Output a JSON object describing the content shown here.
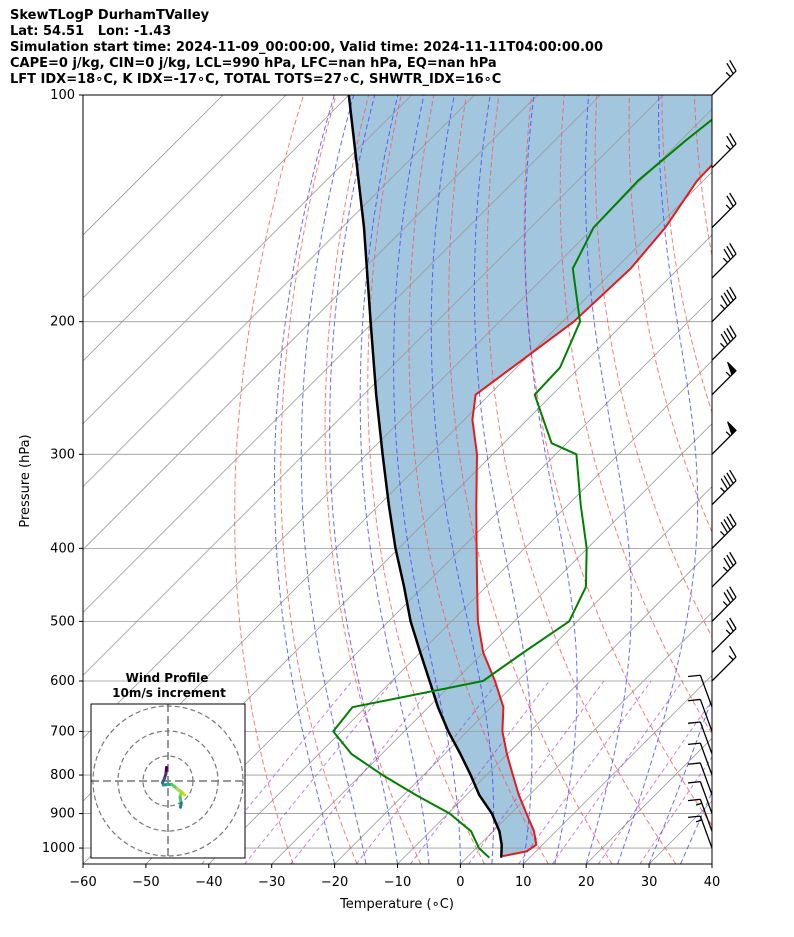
{
  "header": {
    "line1": "SkewTLogP DurhamTValley",
    "line2": "Lat: 54.51   Lon: -1.43",
    "line3": "Simulation start time: 2024-11-09_00:00:00, Valid time: 2024-11-11T04:00:00.00",
    "line4": "CAPE=0 j/kg, CIN=0 j/kg, LCL=990 hPa, LFC=nan hPa, EQ=nan hPa",
    "line5": "LFT IDX=18∘C, K IDX=-17∘C, TOTAL TOTS=27∘C, SHWTR_IDX=16∘C"
  },
  "colors": {
    "temperature": "#e41a1c",
    "dewpoint": "#008000",
    "parcel": "#000000",
    "shade": "#a3c6df",
    "dry_adiabat": "#ff5555",
    "moist_adiabat": "#4444ff",
    "mixing_ratio": "#9b30c8",
    "isotherm": "#999999"
  },
  "chart_data": [
    {
      "type": "line",
      "name": "skewt",
      "title": "SkewTLogP DurhamTValley",
      "xlabel": "Temperature (∘C)",
      "ylabel": "Pressure (hPa)",
      "xlim": [
        -60,
        40
      ],
      "ylim": [
        1050,
        100
      ],
      "yscale": "log",
      "skew": "45deg",
      "grid": true,
      "x_ticks": [
        "−60",
        "−50",
        "−40",
        "−30",
        "−20",
        "−10",
        "0",
        "10",
        "20",
        "30",
        "40"
      ],
      "y_ticks": [
        "100",
        "200",
        "300",
        "400",
        "500",
        "600",
        "700",
        "800",
        "900",
        "1000"
      ],
      "series": [
        {
          "name": "Temperature",
          "pressure": [
            1025,
            1010,
            990,
            950,
            900,
            850,
            800,
            750,
            700,
            650,
            600,
            550,
            500,
            450,
            400,
            350,
            300,
            270,
            250,
            230,
            200,
            170,
            150,
            130,
            115,
            105,
            100
          ],
          "values": [
            5.5,
            8.5,
            9.0,
            6.5,
            2.5,
            -1.7,
            -5.8,
            -10.1,
            -14.4,
            -18.1,
            -23.6,
            -30.0,
            -35.8,
            -41.4,
            -47.6,
            -54.6,
            -62.5,
            -68.7,
            -72.2,
            -70.7,
            -68.2,
            -67.6,
            -68.6,
            -71.0,
            -71.3,
            -68.4,
            -66.8
          ]
        },
        {
          "name": "Dewpoint",
          "pressure": [
            1030,
            1000,
            950,
            900,
            850,
            800,
            750,
            700,
            650,
            600,
            550,
            500,
            450,
            400,
            350,
            300,
            290,
            250,
            230,
            200,
            170,
            150,
            130,
            115,
            105,
            100
          ],
          "values": [
            3.6,
            0.4,
            -3.5,
            -9.7,
            -18.1,
            -26.5,
            -34.8,
            -41.3,
            -42.1,
            -25.5,
            -23.6,
            -21.3,
            -24.1,
            -30.1,
            -38.0,
            -46.7,
            -52.4,
            -62.8,
            -63.1,
            -67.2,
            -76.8,
            -80.0,
            -80.4,
            -79.2,
            -78.0,
            -77.2
          ]
        },
        {
          "name": "Parcel",
          "pressure": [
            1030,
            990,
            950,
            900,
            850,
            800,
            750,
            700,
            650,
            600,
            550,
            500,
            450,
            400,
            350,
            300,
            250,
            200,
            150,
            100
          ],
          "values": [
            5.5,
            3.5,
            1.0,
            -3.0,
            -8.0,
            -12.5,
            -17.5,
            -23.0,
            -28.5,
            -34.0,
            -40.0,
            -46.5,
            -53.0,
            -60.5,
            -68.5,
            -77.5,
            -88.0,
            -100.5,
            -116.5,
            -140.0
          ]
        }
      ],
      "wind_barbs": [
        {
          "pressure": 100,
          "speed_kt": 25
        },
        {
          "pressure": 125,
          "speed_kt": 25
        },
        {
          "pressure": 150,
          "speed_kt": 25
        },
        {
          "pressure": 175,
          "speed_kt": 35
        },
        {
          "pressure": 200,
          "speed_kt": 45
        },
        {
          "pressure": 225,
          "speed_kt": 45
        },
        {
          "pressure": 250,
          "speed_kt": 55
        },
        {
          "pressure": 300,
          "speed_kt": 55
        },
        {
          "pressure": 350,
          "speed_kt": 45
        },
        {
          "pressure": 400,
          "speed_kt": 45
        },
        {
          "pressure": 450,
          "speed_kt": 35
        },
        {
          "pressure": 500,
          "speed_kt": 35
        },
        {
          "pressure": 550,
          "speed_kt": 25
        },
        {
          "pressure": 600,
          "speed_kt": 15
        },
        {
          "pressure": 650,
          "speed_kt": 10
        },
        {
          "pressure": 700,
          "speed_kt": 10
        },
        {
          "pressure": 750,
          "speed_kt": 10
        },
        {
          "pressure": 800,
          "speed_kt": 10
        },
        {
          "pressure": 850,
          "speed_kt": 10
        },
        {
          "pressure": 900,
          "speed_kt": 10
        },
        {
          "pressure": 950,
          "speed_kt": 15
        },
        {
          "pressure": 1000,
          "speed_kt": 15
        }
      ]
    },
    {
      "type": "line",
      "name": "hodograph",
      "title": "Wind Profile",
      "subtitle": "10m/s increment",
      "ring_increment_ms": 10,
      "grid": true,
      "series": [
        {
          "name": "Hodograph",
          "u": [
            -0.6,
            -0.8,
            -1.4,
            -2.2,
            -1.8,
            -0.2,
            1.6,
            3.6,
            5.7,
            6.7,
            5.3,
            4.8,
            5.3,
            5.0
          ],
          "v": [
            5.4,
            3.1,
            1.0,
            -0.6,
            -1.6,
            -1.4,
            -1.4,
            -3.1,
            -4.6,
            -5.6,
            -4.5,
            -6.5,
            -8.8,
            -10.5
          ]
        }
      ]
    }
  ]
}
